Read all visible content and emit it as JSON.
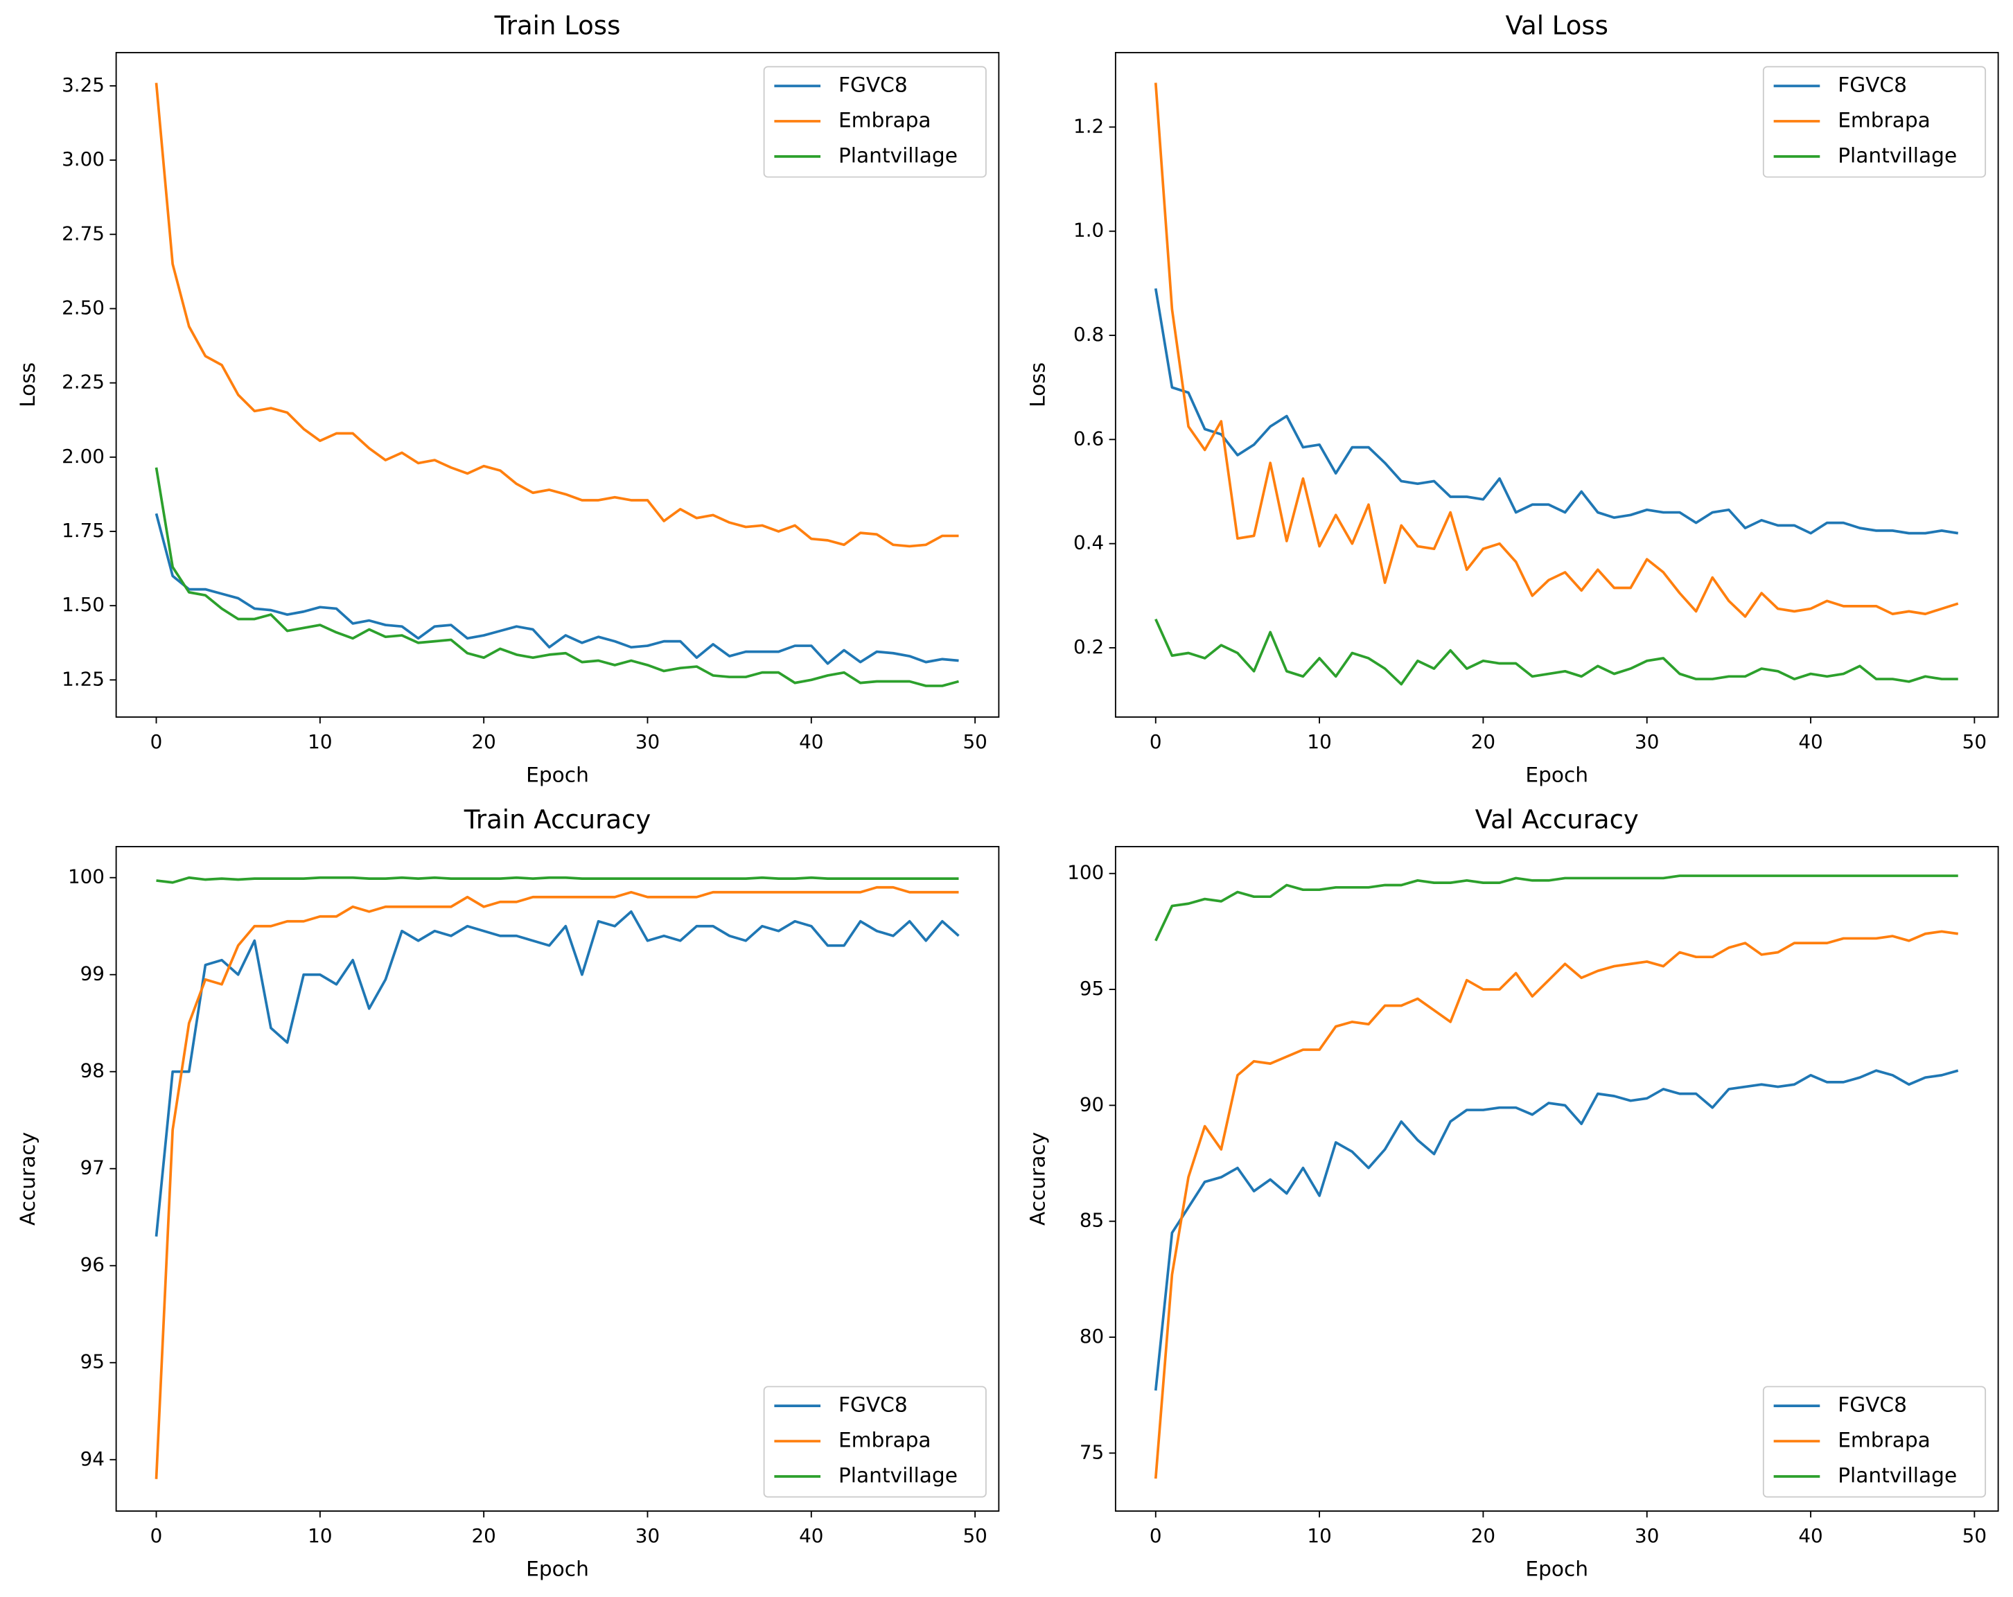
{
  "chart_data": [
    {
      "type": "line",
      "title": "Train Loss",
      "x_label": "Epoch",
      "y_label": "Loss",
      "legend_loc": "upper right",
      "x": [
        0,
        1,
        2,
        3,
        4,
        5,
        6,
        7,
        8,
        9,
        10,
        11,
        12,
        13,
        14,
        15,
        16,
        17,
        18,
        19,
        20,
        21,
        22,
        23,
        24,
        25,
        26,
        27,
        28,
        29,
        30,
        31,
        32,
        33,
        34,
        35,
        36,
        37,
        38,
        39,
        40,
        41,
        42,
        43,
        44,
        45,
        46,
        47,
        48,
        49
      ],
      "xlim": [
        -2.45,
        51.45
      ],
      "xticks": [
        0,
        10,
        20,
        30,
        40,
        50
      ],
      "ylim": [
        1.125,
        3.362
      ],
      "yticks": [
        1.25,
        {
          "value": 1.5,
          "label": "1.50"
        },
        1.75,
        {
          "value": 2,
          "label": "2.00"
        },
        2.25,
        {
          "value": 2.5,
          "label": "2.50"
        },
        2.75,
        {
          "value": 3,
          "label": "3.00"
        },
        3.25
      ],
      "series": [
        {
          "name": "FGVC8",
          "color": "#1f77b4",
          "values": [
            1.81,
            1.6,
            1.555,
            1.555,
            1.54,
            1.525,
            1.49,
            1.485,
            1.47,
            1.48,
            1.495,
            1.49,
            1.44,
            1.45,
            1.435,
            1.43,
            1.39,
            1.43,
            1.435,
            1.39,
            1.4,
            1.415,
            1.43,
            1.42,
            1.36,
            1.4,
            1.375,
            1.395,
            1.38,
            1.36,
            1.365,
            1.38,
            1.38,
            1.325,
            1.37,
            1.33,
            1.345,
            1.345,
            1.345,
            1.365,
            1.365,
            1.305,
            1.35,
            1.31,
            1.345,
            1.34,
            1.33,
            1.31,
            1.32,
            1.315
          ]
        },
        {
          "name": "Embrapa",
          "color": "#ff7f0e",
          "values": [
            3.26,
            2.65,
            2.44,
            2.34,
            2.31,
            2.21,
            2.155,
            2.165,
            2.15,
            2.095,
            2.055,
            2.08,
            2.08,
            2.03,
            1.99,
            2.015,
            1.98,
            1.99,
            1.965,
            1.945,
            1.97,
            1.955,
            1.91,
            1.88,
            1.89,
            1.875,
            1.855,
            1.855,
            1.865,
            1.855,
            1.855,
            1.785,
            1.825,
            1.795,
            1.805,
            1.78,
            1.765,
            1.77,
            1.75,
            1.77,
            1.725,
            1.72,
            1.705,
            1.745,
            1.74,
            1.705,
            1.7,
            1.705,
            1.735,
            1.735
          ]
        },
        {
          "name": "Plantvillage",
          "color": "#2ca02c",
          "values": [
            1.965,
            1.63,
            1.545,
            1.535,
            1.49,
            1.455,
            1.455,
            1.47,
            1.415,
            1.425,
            1.435,
            1.41,
            1.39,
            1.42,
            1.395,
            1.4,
            1.375,
            1.38,
            1.385,
            1.34,
            1.325,
            1.355,
            1.335,
            1.325,
            1.335,
            1.34,
            1.31,
            1.315,
            1.3,
            1.315,
            1.3,
            1.28,
            1.29,
            1.295,
            1.265,
            1.26,
            1.26,
            1.275,
            1.275,
            1.24,
            1.25,
            1.265,
            1.275,
            1.24,
            1.245,
            1.245,
            1.245,
            1.23,
            1.23,
            1.245
          ]
        }
      ]
    },
    {
      "type": "line",
      "title": "Val Loss",
      "x_label": "Epoch",
      "y_label": "Loss",
      "legend_loc": "upper right",
      "x": [
        0,
        1,
        2,
        3,
        4,
        5,
        6,
        7,
        8,
        9,
        10,
        11,
        12,
        13,
        14,
        15,
        16,
        17,
        18,
        19,
        20,
        21,
        22,
        23,
        24,
        25,
        26,
        27,
        28,
        29,
        30,
        31,
        32,
        33,
        34,
        35,
        36,
        37,
        38,
        39,
        40,
        41,
        42,
        43,
        44,
        45,
        46,
        47,
        48,
        49
      ],
      "xlim": [
        -2.45,
        51.45
      ],
      "xticks": [
        0,
        10,
        20,
        30,
        40,
        50
      ],
      "ylim": [
        0.067,
        1.343
      ],
      "yticks": [
        0.2,
        0.4,
        0.6,
        0.8,
        {
          "value": 1,
          "label": "1.0"
        },
        1.2
      ],
      "series": [
        {
          "name": "FGVC8",
          "color": "#1f77b4",
          "values": [
            0.89,
            0.7,
            0.69,
            0.62,
            0.61,
            0.57,
            0.59,
            0.625,
            0.645,
            0.585,
            0.59,
            0.535,
            0.585,
            0.585,
            0.555,
            0.52,
            0.515,
            0.52,
            0.49,
            0.49,
            0.485,
            0.525,
            0.46,
            0.475,
            0.475,
            0.46,
            0.5,
            0.46,
            0.45,
            0.455,
            0.465,
            0.46,
            0.46,
            0.44,
            0.46,
            0.465,
            0.43,
            0.445,
            0.435,
            0.435,
            0.42,
            0.44,
            0.44,
            0.43,
            0.425,
            0.425,
            0.42,
            0.42,
            0.425,
            0.42
          ]
        },
        {
          "name": "Embrapa",
          "color": "#ff7f0e",
          "values": [
            1.285,
            0.85,
            0.625,
            0.58,
            0.635,
            0.41,
            0.415,
            0.555,
            0.405,
            0.525,
            0.395,
            0.455,
            0.4,
            0.475,
            0.325,
            0.435,
            0.395,
            0.39,
            0.46,
            0.35,
            0.39,
            0.4,
            0.365,
            0.3,
            0.33,
            0.345,
            0.31,
            0.35,
            0.315,
            0.315,
            0.37,
            0.345,
            0.305,
            0.27,
            0.335,
            0.29,
            0.26,
            0.305,
            0.275,
            0.27,
            0.275,
            0.29,
            0.28,
            0.28,
            0.28,
            0.265,
            0.27,
            0.265,
            0.275,
            0.285
          ]
        },
        {
          "name": "Plantvillage",
          "color": "#2ca02c",
          "values": [
            0.255,
            0.185,
            0.19,
            0.18,
            0.205,
            0.19,
            0.155,
            0.23,
            0.155,
            0.145,
            0.18,
            0.145,
            0.19,
            0.18,
            0.16,
            0.13,
            0.175,
            0.16,
            0.195,
            0.16,
            0.175,
            0.17,
            0.17,
            0.145,
            0.15,
            0.155,
            0.145,
            0.165,
            0.15,
            0.16,
            0.175,
            0.18,
            0.15,
            0.14,
            0.14,
            0.145,
            0.145,
            0.16,
            0.155,
            0.14,
            0.15,
            0.145,
            0.15,
            0.165,
            0.14,
            0.14,
            0.135,
            0.145,
            0.14,
            0.14
          ]
        }
      ]
    },
    {
      "type": "line",
      "title": "Train Accuracy",
      "x_label": "Epoch",
      "y_label": "Accuracy",
      "legend_loc": "lower right",
      "x": [
        0,
        1,
        2,
        3,
        4,
        5,
        6,
        7,
        8,
        9,
        10,
        11,
        12,
        13,
        14,
        15,
        16,
        17,
        18,
        19,
        20,
        21,
        22,
        23,
        24,
        25,
        26,
        27,
        28,
        29,
        30,
        31,
        32,
        33,
        34,
        35,
        36,
        37,
        38,
        39,
        40,
        41,
        42,
        43,
        44,
        45,
        46,
        47,
        48,
        49
      ],
      "xlim": [
        -2.45,
        51.45
      ],
      "xticks": [
        0,
        10,
        20,
        30,
        40,
        50
      ],
      "ylim": [
        93.47,
        100.32
      ],
      "yticks": [
        94,
        95,
        96,
        97,
        98,
        99,
        100
      ],
      "series": [
        {
          "name": "FGVC8",
          "color": "#1f77b4",
          "values": [
            96.3,
            98.0,
            98.0,
            99.1,
            99.15,
            99.0,
            99.35,
            98.45,
            98.3,
            99.0,
            99.0,
            98.9,
            99.15,
            98.65,
            98.95,
            99.45,
            99.35,
            99.45,
            99.4,
            99.5,
            99.45,
            99.4,
            99.4,
            99.35,
            99.3,
            99.5,
            99.0,
            99.55,
            99.5,
            99.65,
            99.35,
            99.4,
            99.35,
            99.5,
            99.5,
            99.4,
            99.35,
            99.5,
            99.45,
            99.55,
            99.5,
            99.3,
            99.3,
            99.55,
            99.45,
            99.4,
            99.55,
            99.35,
            99.55,
            99.4
          ]
        },
        {
          "name": "Embrapa",
          "color": "#ff7f0e",
          "values": [
            93.8,
            97.4,
            98.5,
            98.95,
            98.9,
            99.3,
            99.5,
            99.5,
            99.55,
            99.55,
            99.6,
            99.6,
            99.7,
            99.65,
            99.7,
            99.7,
            99.7,
            99.7,
            99.7,
            99.8,
            99.7,
            99.75,
            99.75,
            99.8,
            99.8,
            99.8,
            99.8,
            99.8,
            99.8,
            99.85,
            99.8,
            99.8,
            99.8,
            99.8,
            99.85,
            99.85,
            99.85,
            99.85,
            99.85,
            99.85,
            99.85,
            99.85,
            99.85,
            99.85,
            99.9,
            99.9,
            99.85,
            99.85,
            99.85,
            99.85
          ]
        },
        {
          "name": "Plantvillage",
          "color": "#2ca02c",
          "values": [
            99.97,
            99.95,
            100.0,
            99.98,
            99.99,
            99.98,
            99.99,
            99.99,
            99.99,
            99.99,
            100.0,
            100.0,
            100.0,
            99.99,
            99.99,
            100.0,
            99.99,
            100.0,
            99.99,
            99.99,
            99.99,
            99.99,
            100.0,
            99.99,
            100.0,
            100.0,
            99.99,
            99.99,
            99.99,
            99.99,
            99.99,
            99.99,
            99.99,
            99.99,
            99.99,
            99.99,
            99.99,
            100.0,
            99.99,
            99.99,
            100.0,
            99.99,
            99.99,
            99.99,
            99.99,
            99.99,
            99.99,
            99.99,
            99.99,
            99.99
          ]
        }
      ]
    },
    {
      "type": "line",
      "title": "Val Accuracy",
      "x_label": "Epoch",
      "y_label": "Accuracy",
      "legend_loc": "lower right",
      "x": [
        0,
        1,
        2,
        3,
        4,
        5,
        6,
        7,
        8,
        9,
        10,
        11,
        12,
        13,
        14,
        15,
        16,
        17,
        18,
        19,
        20,
        21,
        22,
        23,
        24,
        25,
        26,
        27,
        28,
        29,
        30,
        31,
        32,
        33,
        34,
        35,
        36,
        37,
        38,
        39,
        40,
        41,
        42,
        43,
        44,
        45,
        46,
        47,
        48,
        49
      ],
      "xlim": [
        -2.45,
        51.45
      ],
      "xticks": [
        0,
        10,
        20,
        30,
        40,
        50
      ],
      "ylim": [
        72.5,
        101.16
      ],
      "yticks": [
        75,
        80,
        85,
        90,
        95,
        100
      ],
      "series": [
        {
          "name": "FGVC8",
          "color": "#1f77b4",
          "values": [
            77.7,
            84.5,
            85.6,
            86.7,
            86.9,
            87.3,
            86.3,
            86.8,
            86.2,
            87.3,
            86.1,
            88.4,
            88.0,
            87.3,
            88.1,
            89.3,
            88.5,
            87.9,
            89.3,
            89.8,
            89.8,
            89.9,
            89.9,
            89.6,
            90.1,
            90.0,
            89.2,
            90.5,
            90.4,
            90.2,
            90.3,
            90.7,
            90.5,
            90.5,
            89.9,
            90.7,
            90.8,
            90.9,
            90.8,
            90.9,
            91.3,
            91.0,
            91.0,
            91.2,
            91.5,
            91.3,
            90.9,
            91.2,
            91.3,
            91.5
          ]
        },
        {
          "name": "Embrapa",
          "color": "#ff7f0e",
          "values": [
            73.9,
            82.7,
            86.9,
            89.1,
            88.1,
            91.3,
            91.9,
            91.8,
            92.1,
            92.4,
            92.4,
            93.4,
            93.6,
            93.5,
            94.3,
            94.3,
            94.6,
            94.1,
            93.6,
            95.4,
            95.0,
            95.0,
            95.7,
            94.7,
            95.4,
            96.1,
            95.5,
            95.8,
            96.0,
            96.1,
            96.2,
            96.0,
            96.6,
            96.4,
            96.4,
            96.8,
            97.0,
            96.5,
            96.6,
            97.0,
            97.0,
            97.0,
            97.2,
            97.2,
            97.2,
            97.3,
            97.1,
            97.4,
            97.5,
            97.4
          ]
        },
        {
          "name": "Plantvillage",
          "color": "#2ca02c",
          "values": [
            97.1,
            98.6,
            98.7,
            98.9,
            98.8,
            99.2,
            99.0,
            99.0,
            99.5,
            99.3,
            99.3,
            99.4,
            99.4,
            99.4,
            99.5,
            99.5,
            99.7,
            99.6,
            99.6,
            99.7,
            99.6,
            99.6,
            99.8,
            99.7,
            99.7,
            99.8,
            99.8,
            99.8,
            99.8,
            99.8,
            99.8,
            99.8,
            99.9,
            99.9,
            99.9,
            99.9,
            99.9,
            99.9,
            99.9,
            99.9,
            99.9,
            99.9,
            99.9,
            99.9,
            99.9,
            99.9,
            99.9,
            99.9,
            99.9,
            99.9
          ]
        }
      ]
    }
  ]
}
